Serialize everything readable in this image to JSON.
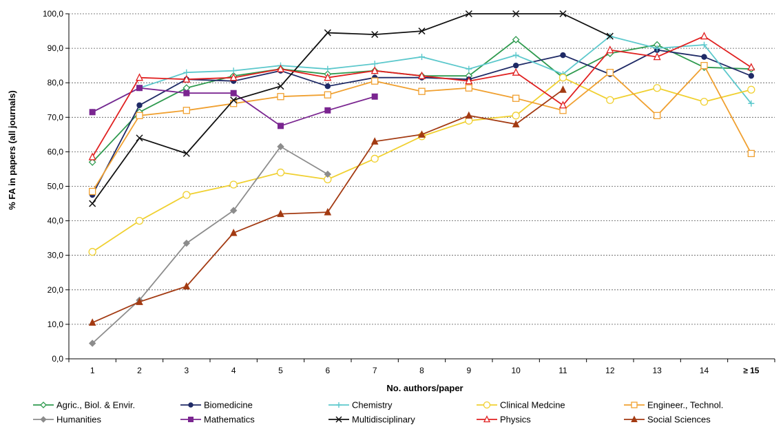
{
  "chart_data": {
    "type": "line",
    "xlabel": "No. authors/paper",
    "ylabel": "% FA in papers (all journals)",
    "categories": [
      "1",
      "2",
      "3",
      "4",
      "5",
      "6",
      "7",
      "8",
      "9",
      "10",
      "11",
      "12",
      "13",
      "14",
      "≥ 15"
    ],
    "ylim": [
      0,
      100
    ],
    "yticks": [
      "0,0",
      "10,0",
      "20,0",
      "30,0",
      "40,0",
      "50,0",
      "60,0",
      "70,0",
      "80,0",
      "90,0",
      "100,0"
    ],
    "grid": "horizontal dashed",
    "legend_position": "bottom",
    "series": [
      {
        "name": "Agric., Biol. & Envir.",
        "color": "#2e9a4e",
        "marker": "diamond-open",
        "values": [
          57,
          71.5,
          78.5,
          82,
          84,
          82.5,
          83.5,
          82,
          82,
          92.5,
          81.5,
          88.5,
          91,
          84.5,
          84
        ]
      },
      {
        "name": "Biomedicine",
        "color": "#1f2a66",
        "marker": "dot",
        "values": [
          47.5,
          73.5,
          81,
          80.5,
          83.5,
          79,
          81.5,
          81.5,
          81,
          85,
          88,
          82.5,
          89.5,
          87.5,
          82
        ]
      },
      {
        "name": "Chemistry",
        "color": "#5cc8cc",
        "marker": "plus",
        "values": [
          71.5,
          78.5,
          83,
          83.5,
          85,
          84,
          85.5,
          87.5,
          84,
          88,
          82.5,
          93.5,
          90,
          91,
          74
        ]
      },
      {
        "name": "Clinical Medcine",
        "color": "#f0d030",
        "marker": "circle-open",
        "values": [
          31,
          40,
          47.5,
          50.5,
          54,
          52,
          58,
          64.5,
          69,
          70.5,
          81.5,
          75,
          78.5,
          74.5,
          78
        ]
      },
      {
        "name": "Engineer., Technol.",
        "color": "#f0a030",
        "marker": "square-open",
        "values": [
          48.5,
          70.5,
          72,
          74,
          76,
          76.5,
          80.5,
          77.5,
          78.5,
          75.5,
          72,
          83,
          70.5,
          85,
          59.5
        ]
      },
      {
        "name": "Humanities",
        "color": "#8c8c8c",
        "marker": "diamond",
        "values": [
          4.5,
          17,
          33.5,
          43,
          61.5,
          53.5,
          null,
          null,
          null,
          null,
          null,
          null,
          null,
          null,
          null
        ]
      },
      {
        "name": "Mathematics",
        "color": "#7a2590",
        "marker": "square",
        "values": [
          71.5,
          78.5,
          77,
          77,
          67.5,
          72,
          76,
          null,
          null,
          null,
          null,
          null,
          null,
          null,
          null
        ]
      },
      {
        "name": "Multidisciplinary",
        "color": "#111111",
        "marker": "x",
        "values": [
          45,
          64,
          59.5,
          75,
          79,
          94.5,
          94,
          95,
          100,
          100,
          100,
          93.5,
          null,
          null,
          null
        ]
      },
      {
        "name": "Physics",
        "color": "#e02020",
        "marker": "triangle-open",
        "values": [
          58.5,
          81.5,
          81,
          81.5,
          84,
          81.5,
          83.5,
          82,
          80.5,
          83,
          73.5,
          89.5,
          87.5,
          93.5,
          84.5
        ]
      },
      {
        "name": "Social Sciences",
        "color": "#a33a12",
        "marker": "triangle",
        "values": [
          10.5,
          16.5,
          21,
          36.5,
          42,
          42.5,
          63,
          65,
          70.5,
          68,
          78,
          null,
          null,
          null,
          null
        ]
      }
    ]
  }
}
